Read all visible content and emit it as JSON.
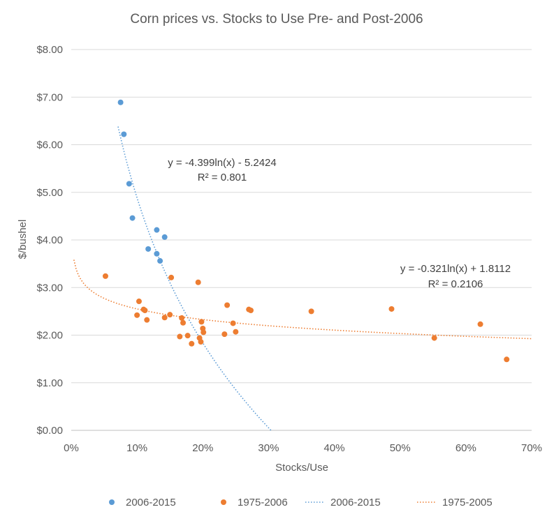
{
  "chart_data": {
    "type": "scatter",
    "title": "Corn prices vs. Stocks to Use Pre- and Post-2006",
    "xlabel": "Stocks/Use",
    "ylabel": "$/bushel",
    "xlim": [
      0,
      0.7
    ],
    "ylim": [
      0,
      8
    ],
    "x_ticks": [
      0,
      0.1,
      0.2,
      0.3,
      0.4,
      0.5,
      0.6,
      0.7
    ],
    "x_tick_labels": [
      "0%",
      "10%",
      "20%",
      "30%",
      "40%",
      "50%",
      "60%",
      "70%"
    ],
    "y_ticks": [
      0,
      1,
      2,
      3,
      4,
      5,
      6,
      7,
      8
    ],
    "y_tick_labels": [
      "$0.00",
      "$1.00",
      "$2.00",
      "$3.00",
      "$4.00",
      "$5.00",
      "$6.00",
      "$7.00",
      "$8.00"
    ],
    "grid": "horizontal",
    "legend_position": "bottom",
    "series": [
      {
        "name": "2006-2015",
        "kind": "scatter",
        "color": "#5B9BD5",
        "points": [
          [
            0.075,
            6.89
          ],
          [
            0.08,
            6.22
          ],
          [
            0.088,
            5.18
          ],
          [
            0.093,
            4.46
          ],
          [
            0.117,
            3.81
          ],
          [
            0.13,
            4.21
          ],
          [
            0.13,
            3.71
          ],
          [
            0.135,
            3.56
          ],
          [
            0.142,
            4.06
          ]
        ]
      },
      {
        "name": "1975-2006",
        "kind": "scatter",
        "color": "#ED7D31",
        "points": [
          [
            0.052,
            3.24
          ],
          [
            0.1,
            2.42
          ],
          [
            0.103,
            2.71
          ],
          [
            0.11,
            2.54
          ],
          [
            0.112,
            2.52
          ],
          [
            0.115,
            2.32
          ],
          [
            0.142,
            2.37
          ],
          [
            0.15,
            2.43
          ],
          [
            0.152,
            3.21
          ],
          [
            0.165,
            1.97
          ],
          [
            0.168,
            2.36
          ],
          [
            0.17,
            2.26
          ],
          [
            0.177,
            1.99
          ],
          [
            0.183,
            1.82
          ],
          [
            0.193,
            3.11
          ],
          [
            0.195,
            1.94
          ],
          [
            0.197,
            1.86
          ],
          [
            0.198,
            2.28
          ],
          [
            0.2,
            2.14
          ],
          [
            0.201,
            2.06
          ],
          [
            0.233,
            2.02
          ],
          [
            0.237,
            2.63
          ],
          [
            0.246,
            2.25
          ],
          [
            0.25,
            2.07
          ],
          [
            0.27,
            2.54
          ],
          [
            0.273,
            2.52
          ],
          [
            0.365,
            2.5
          ],
          [
            0.487,
            2.55
          ],
          [
            0.552,
            1.94
          ],
          [
            0.622,
            2.23
          ],
          [
            0.662,
            1.49
          ]
        ]
      },
      {
        "name": "2006-2015",
        "kind": "trendline",
        "color": "#5B9BD5",
        "equation": "y = -4.399ln(x) - 5.2424",
        "r_squared": "R² = 0.801",
        "a": -4.399,
        "b": -5.2424,
        "x_range": [
          0.0712,
          0.3038
        ]
      },
      {
        "name": "1975-2005",
        "kind": "trendline",
        "color": "#ED7D31",
        "equation": "y = -0.321ln(x) + 1.8112",
        "r_squared": "R² = 0.2106",
        "a": -0.321,
        "b": 1.8112,
        "x_range": [
          0.004,
          0.7
        ]
      }
    ]
  }
}
